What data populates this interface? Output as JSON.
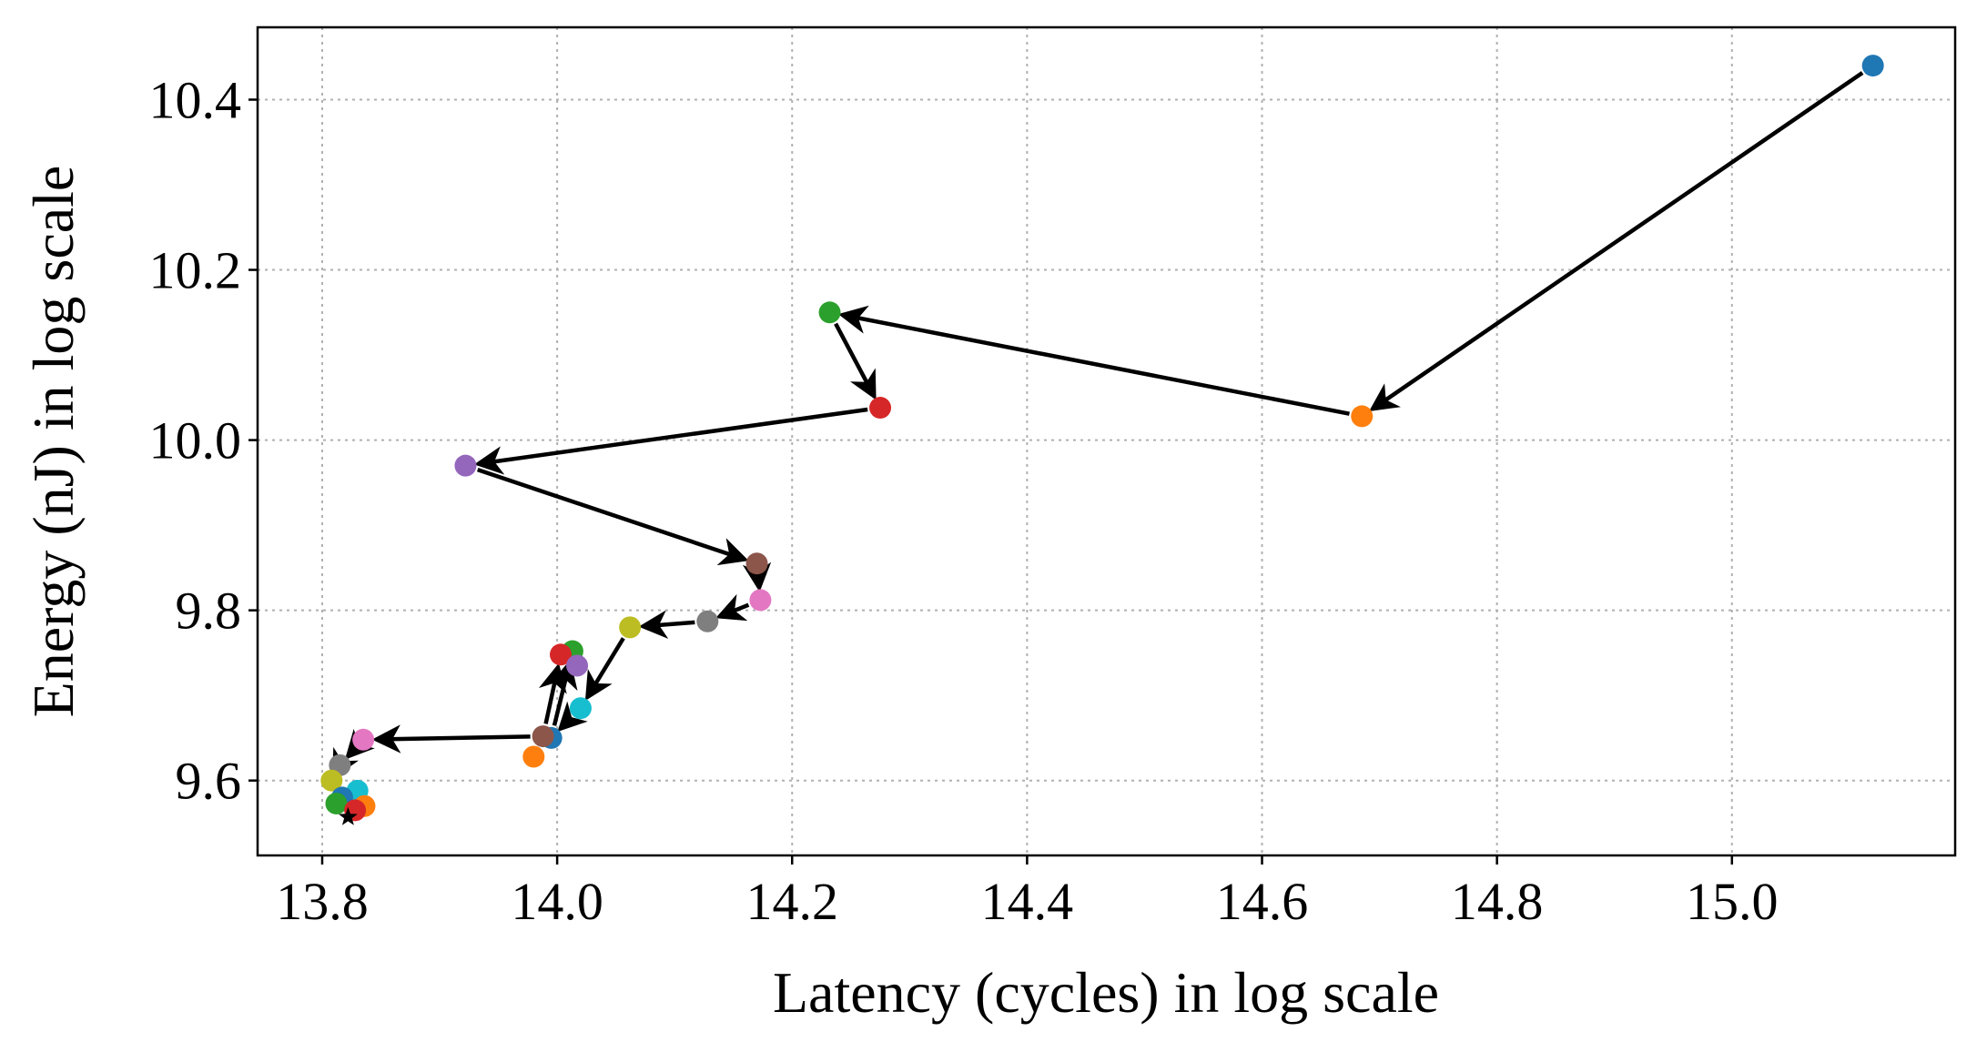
{
  "chart_data": {
    "type": "scatter",
    "title": "",
    "xlabel": "Latency (cycles) in log scale",
    "ylabel": "Energy (nJ) in log scale",
    "xlim": [
      13.745,
      15.19
    ],
    "ylim": [
      9.512,
      10.485
    ],
    "x_ticks": [
      13.8,
      14.0,
      14.2,
      14.4,
      14.6,
      14.8,
      15.0
    ],
    "x_tick_labels": [
      "13.8",
      "14.0",
      "14.2",
      "14.4",
      "14.6",
      "14.8",
      "15.0"
    ],
    "y_ticks": [
      9.6,
      9.8,
      10.0,
      10.2,
      10.4
    ],
    "y_tick_labels": [
      "9.6",
      "9.8",
      "10.0",
      "10.2",
      "10.4"
    ],
    "grid": true,
    "points": [
      {
        "x": 15.12,
        "y": 10.44,
        "color": "#1f77b4"
      },
      {
        "x": 14.685,
        "y": 10.028,
        "color": "#ff7f0e"
      },
      {
        "x": 14.232,
        "y": 10.15,
        "color": "#2ca02c"
      },
      {
        "x": 14.275,
        "y": 10.038,
        "color": "#d62728"
      },
      {
        "x": 13.922,
        "y": 9.97,
        "color": "#9467bd"
      },
      {
        "x": 14.17,
        "y": 9.855,
        "color": "#8c564b"
      },
      {
        "x": 14.173,
        "y": 9.812,
        "color": "#e377c2"
      },
      {
        "x": 14.128,
        "y": 9.787,
        "color": "#7f7f7f"
      },
      {
        "x": 14.062,
        "y": 9.78,
        "color": "#bcbd22"
      },
      {
        "x": 14.02,
        "y": 9.685,
        "color": "#17becf"
      },
      {
        "x": 13.995,
        "y": 9.65,
        "color": "#1f77b4"
      },
      {
        "x": 13.98,
        "y": 9.628,
        "color": "#ff7f0e"
      },
      {
        "x": 14.013,
        "y": 9.752,
        "color": "#2ca02c"
      },
      {
        "x": 14.003,
        "y": 9.748,
        "color": "#d62728"
      },
      {
        "x": 14.017,
        "y": 9.735,
        "color": "#9467bd"
      },
      {
        "x": 13.988,
        "y": 9.652,
        "color": "#8c564b"
      },
      {
        "x": 13.835,
        "y": 9.648,
        "color": "#e377c2"
      },
      {
        "x": 13.815,
        "y": 9.618,
        "color": "#7f7f7f"
      },
      {
        "x": 13.808,
        "y": 9.6,
        "color": "#bcbd22"
      },
      {
        "x": 13.83,
        "y": 9.588,
        "color": "#17becf"
      },
      {
        "x": 13.817,
        "y": 9.58,
        "color": "#1f77b4"
      },
      {
        "x": 13.836,
        "y": 9.57,
        "color": "#ff7f0e"
      },
      {
        "x": 13.812,
        "y": 9.573,
        "color": "#2ca02c"
      },
      {
        "x": 13.828,
        "y": 9.565,
        "color": "#d62728"
      }
    ],
    "final_point": {
      "x": 13.822,
      "y": 9.557,
      "marker": "star",
      "color": "#000000"
    },
    "arrows": [
      {
        "from": [
          15.12,
          10.44
        ],
        "to": [
          14.685,
          10.028
        ]
      },
      {
        "from": [
          14.685,
          10.028
        ],
        "to": [
          14.232,
          10.15
        ]
      },
      {
        "from": [
          14.232,
          10.15
        ],
        "to": [
          14.275,
          10.038
        ]
      },
      {
        "from": [
          14.275,
          10.038
        ],
        "to": [
          13.922,
          9.97
        ]
      },
      {
        "from": [
          13.922,
          9.97
        ],
        "to": [
          14.17,
          9.855
        ]
      },
      {
        "from": [
          14.17,
          9.855
        ],
        "to": [
          14.173,
          9.812
        ]
      },
      {
        "from": [
          14.173,
          9.812
        ],
        "to": [
          14.128,
          9.787
        ]
      },
      {
        "from": [
          14.128,
          9.787
        ],
        "to": [
          14.062,
          9.78
        ]
      },
      {
        "from": [
          14.062,
          9.78
        ],
        "to": [
          14.02,
          9.685
        ]
      },
      {
        "from": [
          14.02,
          9.685
        ],
        "to": [
          13.995,
          9.65
        ]
      },
      {
        "from": [
          13.995,
          9.65
        ],
        "to": [
          14.013,
          9.752
        ]
      },
      {
        "from": [
          13.988,
          9.652
        ],
        "to": [
          14.003,
          9.748
        ]
      },
      {
        "from": [
          13.988,
          9.652
        ],
        "to": [
          13.835,
          9.648
        ]
      },
      {
        "from": [
          13.835,
          9.648
        ],
        "to": [
          13.815,
          9.618
        ]
      },
      {
        "from": [
          13.815,
          9.618
        ],
        "to": [
          13.808,
          9.6
        ]
      }
    ]
  }
}
